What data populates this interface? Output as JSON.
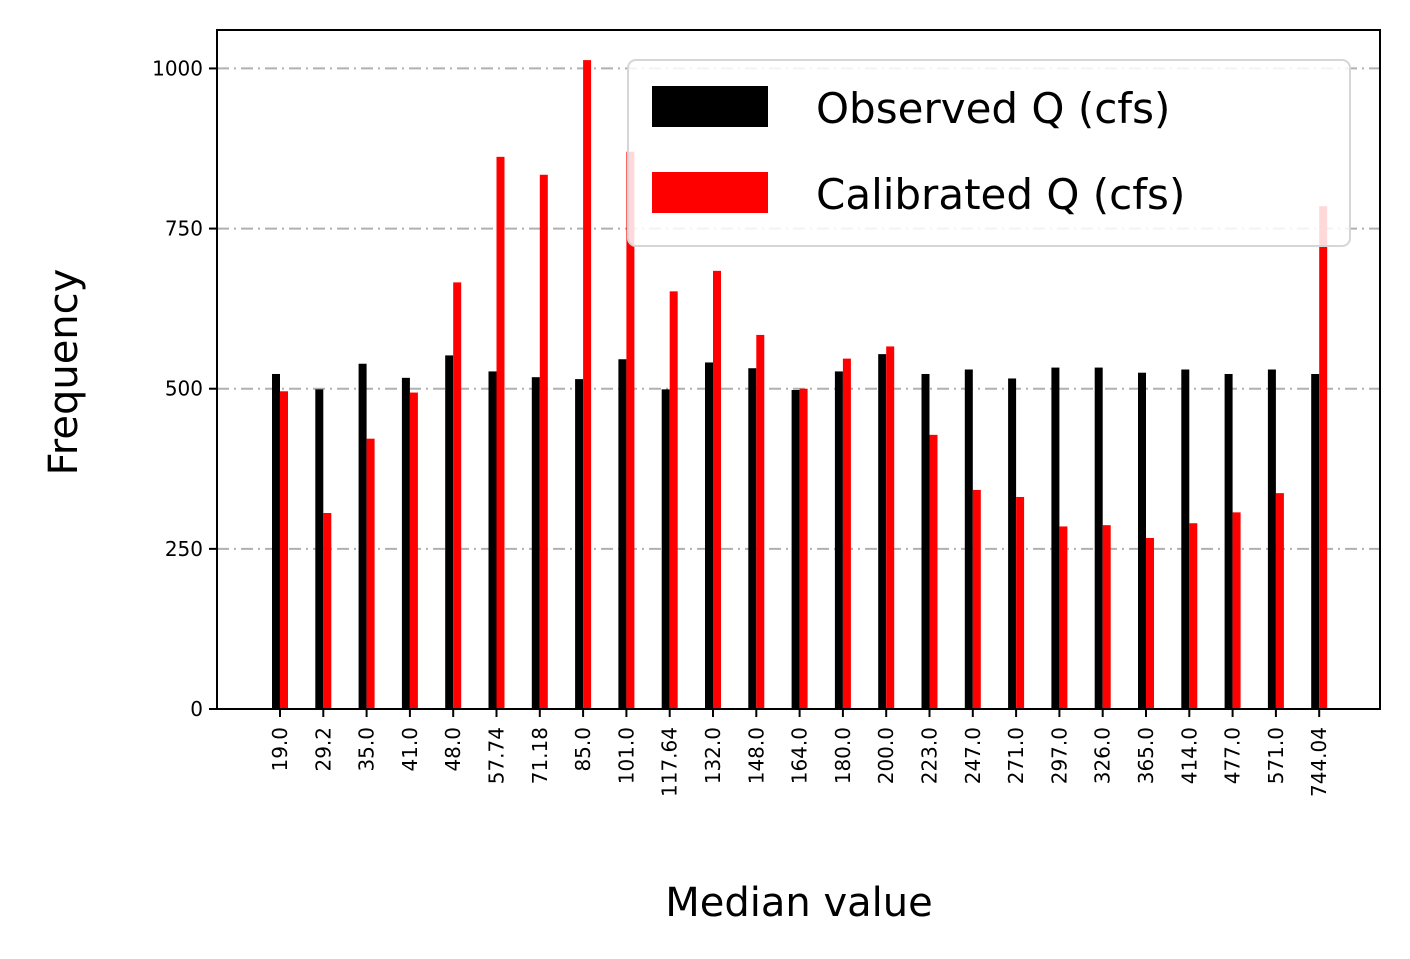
{
  "chart_data": {
    "type": "bar",
    "title": "",
    "xlabel": "Median value",
    "ylabel": "Frequency",
    "ylim": [
      0,
      1060
    ],
    "yticks": [
      0,
      250,
      500,
      750,
      1000
    ],
    "grid": "horizontal, dash-dot, light gray",
    "legend_position": "top-right",
    "categories": [
      "19.0",
      "29.2",
      "35.0",
      "41.0",
      "48.0",
      "57.74",
      "71.18",
      "85.0",
      "101.0",
      "117.64",
      "132.0",
      "148.0",
      "164.0",
      "180.0",
      "200.0",
      "223.0",
      "247.0",
      "271.0",
      "297.0",
      "326.0",
      "365.0",
      "414.0",
      "477.0",
      "571.0",
      "744.04"
    ],
    "series": [
      {
        "name": "Observed Q (cfs)",
        "color": "#000000",
        "values": [
          523,
          499,
          539,
          517,
          552,
          527,
          518,
          515,
          546,
          499,
          541,
          532,
          498,
          527,
          554,
          523,
          530,
          516,
          533,
          533,
          525,
          530,
          523,
          530,
          523
        ]
      },
      {
        "name": "Calibrated Q (cfs)",
        "color": "#ff0000",
        "values": [
          496,
          306,
          422,
          494,
          666,
          862,
          834,
          1013,
          870,
          652,
          684,
          584,
          500,
          547,
          566,
          428,
          342,
          331,
          285,
          287,
          267,
          290,
          307,
          337,
          785
        ]
      }
    ]
  }
}
